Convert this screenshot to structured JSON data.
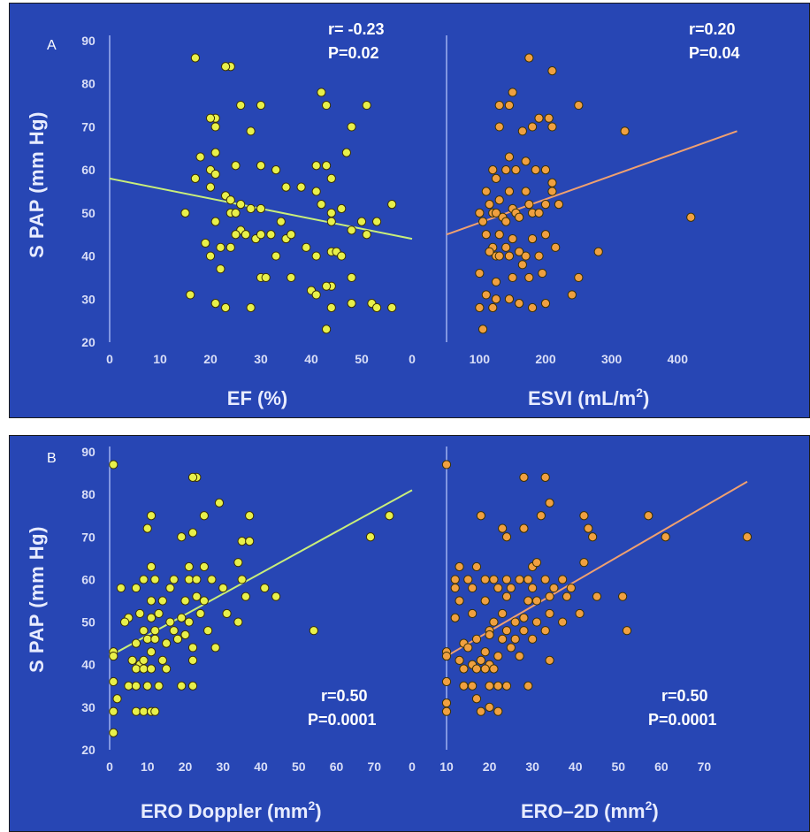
{
  "panels": {
    "a": {
      "label": "A",
      "ylabel": "S PAP (mm Hg)",
      "charts": {
        "ef": {
          "xlabel": "EF (%)",
          "xticks": [
            "0",
            "10",
            "20",
            "30",
            "40",
            "50",
            "0"
          ],
          "stat_r": "r= -0.23",
          "stat_p": "P=0.02"
        },
        "esvi": {
          "xlabel_main": "ESVI (mL/m",
          "xlabel_sup": "2",
          "xlabel_end": ")",
          "xticks": [
            "100",
            "200",
            "300",
            "400"
          ],
          "stat_r": "r=0.20",
          "stat_p": "P=0.04"
        }
      }
    },
    "b": {
      "label": "B",
      "ylabel": "S PAP (mm Hg)",
      "charts": {
        "doppler": {
          "xlabel_main": "ERO Doppler (mm",
          "xlabel_sup": "2",
          "xlabel_end": ")",
          "xticks": [
            "0",
            "10",
            "20",
            "30",
            "40",
            "50",
            "60",
            "70",
            "0"
          ],
          "stat_r": "r=0.50",
          "stat_p": "P=0.0001"
        },
        "ero2d": {
          "xlabel_main": "ERO–2D (mm",
          "xlabel_sup": "2",
          "xlabel_end": ")",
          "xticks": [
            "10",
            "20",
            "30",
            "40",
            "50",
            "60",
            "70"
          ],
          "stat_r": "r=0.50",
          "stat_p": "P=0.0001"
        }
      }
    }
  },
  "yticks": [
    "20",
    "30",
    "40",
    "50",
    "60",
    "70",
    "80",
    "90"
  ],
  "colors": {
    "background": "#2746b4",
    "yellow_points": "#e8f04a",
    "orange_points": "#f0a040",
    "yellow_line": "#c9ee7a",
    "orange_line": "#f0a070",
    "axis": "#9fb0f0"
  },
  "chart_data": [
    {
      "type": "scatter",
      "panel": "A",
      "xlabel": "EF (%)",
      "ylabel": "S PAP (mm Hg)",
      "xlim": [
        0,
        60
      ],
      "ylim": [
        20,
        90
      ],
      "r": -0.23,
      "p": 0.02,
      "trend": [
        [
          0,
          58
        ],
        [
          60,
          44
        ]
      ],
      "points": [
        [
          17,
          86
        ],
        [
          24,
          84
        ],
        [
          23,
          84
        ],
        [
          42,
          78
        ],
        [
          21,
          72
        ],
        [
          20,
          72
        ],
        [
          21,
          70
        ],
        [
          26,
          75
        ],
        [
          30,
          75
        ],
        [
          43,
          75
        ],
        [
          51,
          75
        ],
        [
          28,
          69
        ],
        [
          48,
          70
        ],
        [
          18,
          63
        ],
        [
          20,
          60
        ],
        [
          17,
          58
        ],
        [
          21,
          64
        ],
        [
          25,
          61
        ],
        [
          30,
          61
        ],
        [
          33,
          60
        ],
        [
          41,
          61
        ],
        [
          43,
          61
        ],
        [
          44,
          58
        ],
        [
          47,
          64
        ],
        [
          20,
          56
        ],
        [
          21,
          59
        ],
        [
          23,
          54
        ],
        [
          24,
          53
        ],
        [
          26,
          52
        ],
        [
          28,
          51
        ],
        [
          30,
          51
        ],
        [
          35,
          56
        ],
        [
          38,
          56
        ],
        [
          24,
          50
        ],
        [
          25,
          50
        ],
        [
          41,
          55
        ],
        [
          42,
          52
        ],
        [
          44,
          50
        ],
        [
          46,
          51
        ],
        [
          50,
          48
        ],
        [
          53,
          48
        ],
        [
          56,
          52
        ],
        [
          15,
          50
        ],
        [
          21,
          48
        ],
        [
          26,
          46
        ],
        [
          29,
          44
        ],
        [
          32,
          45
        ],
        [
          34,
          48
        ],
        [
          35,
          44
        ],
        [
          36,
          45
        ],
        [
          39,
          42
        ],
        [
          22,
          42
        ],
        [
          24,
          42
        ],
        [
          25,
          45
        ],
        [
          27,
          45
        ],
        [
          30,
          45
        ],
        [
          44,
          48
        ],
        [
          48,
          46
        ],
        [
          20,
          40
        ],
        [
          19,
          43
        ],
        [
          33,
          40
        ],
        [
          41,
          40
        ],
        [
          44,
          41
        ],
        [
          51,
          45
        ],
        [
          45,
          41
        ],
        [
          46,
          40
        ],
        [
          22,
          37
        ],
        [
          30,
          35
        ],
        [
          31,
          35
        ],
        [
          36,
          35
        ],
        [
          48,
          35
        ],
        [
          44,
          33
        ],
        [
          40,
          32
        ],
        [
          41,
          31
        ],
        [
          43,
          33
        ],
        [
          16,
          31
        ],
        [
          21,
          29
        ],
        [
          23,
          28
        ],
        [
          28,
          28
        ],
        [
          44,
          28
        ],
        [
          48,
          29
        ],
        [
          52,
          29
        ],
        [
          53,
          28
        ],
        [
          56,
          28
        ],
        [
          43,
          23
        ]
      ]
    },
    {
      "type": "scatter",
      "panel": "A",
      "xlabel": "ESVI (mL/m2)",
      "ylabel": "S PAP (mm Hg)",
      "xlim": [
        50,
        500
      ],
      "ylim": [
        20,
        90
      ],
      "r": 0.2,
      "p": 0.04,
      "trend": [
        [
          50,
          45
        ],
        [
          490,
          69
        ]
      ],
      "points": [
        [
          175,
          86
        ],
        [
          210,
          83
        ],
        [
          150,
          78
        ],
        [
          130,
          75
        ],
        [
          145,
          75
        ],
        [
          190,
          72
        ],
        [
          205,
          72
        ],
        [
          250,
          75
        ],
        [
          320,
          69
        ],
        [
          130,
          70
        ],
        [
          165,
          69
        ],
        [
          180,
          70
        ],
        [
          210,
          70
        ],
        [
          120,
          60
        ],
        [
          125,
          58
        ],
        [
          140,
          60
        ],
        [
          145,
          63
        ],
        [
          155,
          60
        ],
        [
          170,
          62
        ],
        [
          185,
          60
        ],
        [
          200,
          60
        ],
        [
          210,
          57
        ],
        [
          100,
          50
        ],
        [
          105,
          48
        ],
        [
          110,
          55
        ],
        [
          115,
          52
        ],
        [
          120,
          50
        ],
        [
          125,
          50
        ],
        [
          130,
          53
        ],
        [
          135,
          49
        ],
        [
          140,
          48
        ],
        [
          145,
          55
        ],
        [
          150,
          51
        ],
        [
          155,
          50
        ],
        [
          160,
          49
        ],
        [
          170,
          55
        ],
        [
          175,
          52
        ],
        [
          180,
          50
        ],
        [
          190,
          50
        ],
        [
          200,
          52
        ],
        [
          210,
          55
        ],
        [
          220,
          52
        ],
        [
          420,
          49
        ],
        [
          110,
          45
        ],
        [
          120,
          42
        ],
        [
          125,
          40
        ],
        [
          130,
          45
        ],
        [
          140,
          42
        ],
        [
          145,
          40
        ],
        [
          150,
          44
        ],
        [
          160,
          41
        ],
        [
          170,
          40
        ],
        [
          180,
          44
        ],
        [
          200,
          45
        ],
        [
          215,
          42
        ],
        [
          280,
          41
        ],
        [
          115,
          41
        ],
        [
          130,
          40
        ],
        [
          165,
          38
        ],
        [
          190,
          40
        ],
        [
          100,
          36
        ],
        [
          125,
          34
        ],
        [
          150,
          35
        ],
        [
          175,
          35
        ],
        [
          195,
          36
        ],
        [
          250,
          35
        ],
        [
          110,
          31
        ],
        [
          125,
          30
        ],
        [
          145,
          30
        ],
        [
          160,
          29
        ],
        [
          180,
          28
        ],
        [
          200,
          29
        ],
        [
          240,
          31
        ],
        [
          100,
          28
        ],
        [
          120,
          28
        ],
        [
          105,
          23
        ]
      ]
    },
    {
      "type": "scatter",
      "panel": "B",
      "xlabel": "ERO Doppler (mm2)",
      "ylabel": "S PAP (mm Hg)",
      "xlim": [
        0,
        80
      ],
      "ylim": [
        20,
        90
      ],
      "r": 0.5,
      "p": 0.0001,
      "trend": [
        [
          0,
          42
        ],
        [
          80,
          81
        ]
      ],
      "points": [
        [
          1,
          87
        ],
        [
          23,
          84
        ],
        [
          22,
          84
        ],
        [
          29,
          78
        ],
        [
          11,
          75
        ],
        [
          25,
          75
        ],
        [
          37,
          75
        ],
        [
          74,
          75
        ],
        [
          10,
          72
        ],
        [
          22,
          71
        ],
        [
          19,
          70
        ],
        [
          35,
          69
        ],
        [
          37,
          69
        ],
        [
          69,
          70
        ],
        [
          11,
          63
        ],
        [
          21,
          63
        ],
        [
          25,
          63
        ],
        [
          34,
          64
        ],
        [
          9,
          60
        ],
        [
          12,
          60
        ],
        [
          17,
          60
        ],
        [
          21,
          60
        ],
        [
          23,
          60
        ],
        [
          27,
          60
        ],
        [
          3,
          58
        ],
        [
          7,
          58
        ],
        [
          16,
          58
        ],
        [
          30,
          58
        ],
        [
          35,
          60
        ],
        [
          41,
          58
        ],
        [
          11,
          55
        ],
        [
          14,
          55
        ],
        [
          20,
          55
        ],
        [
          23,
          56
        ],
        [
          25,
          55
        ],
        [
          36,
          56
        ],
        [
          44,
          56
        ],
        [
          5,
          51
        ],
        [
          8,
          52
        ],
        [
          11,
          51
        ],
        [
          13,
          52
        ],
        [
          16,
          50
        ],
        [
          19,
          51
        ],
        [
          21,
          50
        ],
        [
          24,
          52
        ],
        [
          31,
          52
        ],
        [
          34,
          50
        ],
        [
          4,
          50
        ],
        [
          9,
          48
        ],
        [
          12,
          48
        ],
        [
          17,
          48
        ],
        [
          26,
          48
        ],
        [
          54,
          48
        ],
        [
          7,
          45
        ],
        [
          10,
          46
        ],
        [
          12,
          46
        ],
        [
          15,
          45
        ],
        [
          18,
          46
        ],
        [
          20,
          47
        ],
        [
          22,
          44
        ],
        [
          1,
          43
        ],
        [
          1,
          42
        ],
        [
          6,
          41
        ],
        [
          8,
          40
        ],
        [
          9,
          41
        ],
        [
          11,
          43
        ],
        [
          14,
          41
        ],
        [
          22,
          41
        ],
        [
          28,
          44
        ],
        [
          7,
          39
        ],
        [
          9,
          39
        ],
        [
          11,
          39
        ],
        [
          15,
          39
        ],
        [
          1,
          36
        ],
        [
          5,
          35
        ],
        [
          7,
          35
        ],
        [
          10,
          35
        ],
        [
          13,
          35
        ],
        [
          19,
          35
        ],
        [
          22,
          35
        ],
        [
          2,
          32
        ],
        [
          1,
          29
        ],
        [
          7,
          29
        ],
        [
          9,
          29
        ],
        [
          11,
          29
        ],
        [
          12,
          29
        ],
        [
          1,
          24
        ]
      ]
    },
    {
      "type": "scatter",
      "panel": "B",
      "xlabel": "ERO–2D (mm2)",
      "ylabel": "S PAP (mm Hg)",
      "xlim": [
        10,
        80
      ],
      "ylim": [
        20,
        90
      ],
      "r": 0.5,
      "p": 0.0001,
      "trend": [
        [
          10,
          42
        ],
        [
          80,
          83
        ]
      ],
      "points": [
        [
          10,
          87
        ],
        [
          28,
          84
        ],
        [
          33,
          84
        ],
        [
          34,
          78
        ],
        [
          18,
          75
        ],
        [
          23,
          72
        ],
        [
          28,
          72
        ],
        [
          32,
          75
        ],
        [
          42,
          75
        ],
        [
          43,
          72
        ],
        [
          57,
          75
        ],
        [
          44,
          70
        ],
        [
          61,
          70
        ],
        [
          80,
          70
        ],
        [
          24,
          70
        ],
        [
          13,
          63
        ],
        [
          17,
          63
        ],
        [
          30,
          63
        ],
        [
          31,
          64
        ],
        [
          42,
          64
        ],
        [
          12,
          60
        ],
        [
          15,
          60
        ],
        [
          19,
          60
        ],
        [
          21,
          60
        ],
        [
          24,
          60
        ],
        [
          27,
          60
        ],
        [
          29,
          60
        ],
        [
          33,
          60
        ],
        [
          37,
          60
        ],
        [
          12,
          58
        ],
        [
          16,
          58
        ],
        [
          22,
          58
        ],
        [
          25,
          58
        ],
        [
          30,
          58
        ],
        [
          35,
          58
        ],
        [
          39,
          58
        ],
        [
          13,
          55
        ],
        [
          19,
          55
        ],
        [
          24,
          56
        ],
        [
          29,
          55
        ],
        [
          31,
          55
        ],
        [
          34,
          56
        ],
        [
          38,
          56
        ],
        [
          45,
          56
        ],
        [
          51,
          56
        ],
        [
          12,
          51
        ],
        [
          16,
          52
        ],
        [
          21,
          50
        ],
        [
          23,
          52
        ],
        [
          26,
          50
        ],
        [
          28,
          51
        ],
        [
          31,
          50
        ],
        [
          34,
          52
        ],
        [
          37,
          50
        ],
        [
          41,
          52
        ],
        [
          20,
          48
        ],
        [
          24,
          48
        ],
        [
          28,
          48
        ],
        [
          33,
          48
        ],
        [
          52,
          48
        ],
        [
          14,
          45
        ],
        [
          17,
          46
        ],
        [
          20,
          47
        ],
        [
          23,
          46
        ],
        [
          26,
          46
        ],
        [
          30,
          46
        ],
        [
          15,
          44
        ],
        [
          19,
          43
        ],
        [
          25,
          44
        ],
        [
          10,
          43
        ],
        [
          10,
          42
        ],
        [
          13,
          41
        ],
        [
          16,
          40
        ],
        [
          18,
          41
        ],
        [
          20,
          40
        ],
        [
          22,
          42
        ],
        [
          27,
          42
        ],
        [
          34,
          41
        ],
        [
          14,
          39
        ],
        [
          17,
          39
        ],
        [
          19,
          39
        ],
        [
          21,
          39
        ],
        [
          10,
          36
        ],
        [
          14,
          35
        ],
        [
          16,
          35
        ],
        [
          20,
          35
        ],
        [
          22,
          35
        ],
        [
          24,
          35
        ],
        [
          29,
          35
        ],
        [
          17,
          32
        ],
        [
          10,
          29
        ],
        [
          18,
          29
        ],
        [
          20,
          30
        ],
        [
          22,
          29
        ],
        [
          10,
          31
        ]
      ]
    }
  ]
}
